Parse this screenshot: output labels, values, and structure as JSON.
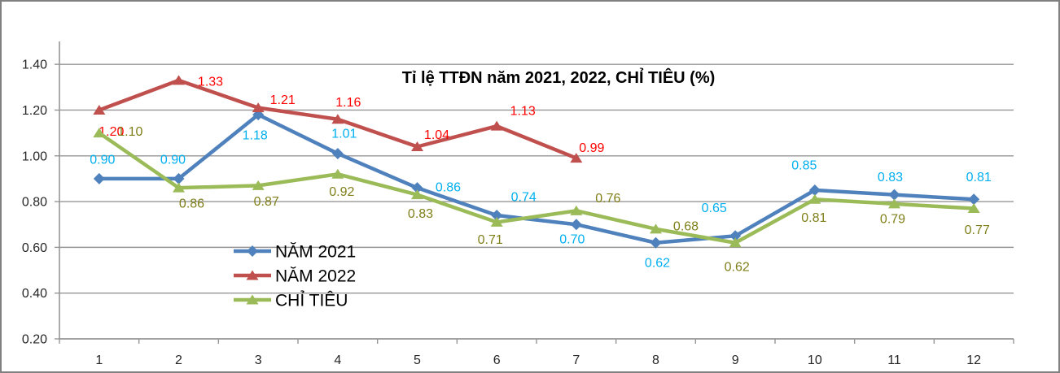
{
  "chart_data": {
    "type": "line",
    "title": "Tỉ lệ TTĐN năm 2021, 2022, CHỈ TIÊU (%)",
    "categories": [
      "1",
      "2",
      "3",
      "4",
      "5",
      "6",
      "7",
      "8",
      "9",
      "10",
      "11",
      "12"
    ],
    "series": [
      {
        "name": "NĂM 2021",
        "color": "#4F81BD",
        "marker": "diamond",
        "label_color": "#00B0F0",
        "values": [
          0.9,
          0.9,
          1.18,
          1.01,
          0.86,
          0.74,
          0.7,
          0.62,
          0.65,
          0.85,
          0.83,
          0.81
        ],
        "labels": [
          "0.90",
          "0.90",
          "1.18",
          "1.01",
          "0.86",
          "0.74",
          "0.70",
          "0.62",
          "0.65",
          "0.85",
          "0.83",
          "0.81"
        ]
      },
      {
        "name": "NĂM 2022",
        "color": "#C0504D",
        "marker": "triangle",
        "label_color": "#FF0000",
        "values": [
          1.2,
          1.33,
          1.21,
          1.16,
          1.04,
          1.13,
          0.99
        ],
        "labels": [
          "1.20",
          "1.33",
          "1.21",
          "1.16",
          "1.04",
          "1.13",
          "0.99"
        ]
      },
      {
        "name": "CHỈ TIÊU",
        "color": "#9BBB59",
        "marker": "triangle",
        "label_color": "#7F7F19",
        "values": [
          1.1,
          0.86,
          0.87,
          0.92,
          0.83,
          0.71,
          0.76,
          0.68,
          0.62,
          0.81,
          0.79,
          0.77
        ],
        "labels": [
          "1.10",
          "0.86",
          "0.87",
          "0.92",
          "0.83",
          "0.71",
          "0.76",
          "0.68",
          "0.62",
          "0.81",
          "0.79",
          "0.77"
        ]
      }
    ],
    "ylim": [
      0.2,
      1.5
    ],
    "yticks": [
      "0.20",
      "0.40",
      "0.60",
      "0.80",
      "1.00",
      "1.20",
      "1.40"
    ],
    "grid": true,
    "legend_position": "center-left",
    "axis_color": "#969696",
    "grid_color": "#969696",
    "tick_label_color": "#262626",
    "title_color": "#000000"
  }
}
